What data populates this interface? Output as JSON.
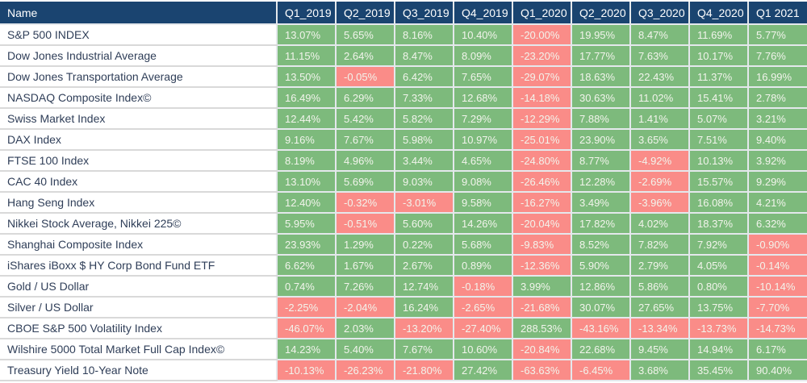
{
  "table": {
    "name_header": "Name",
    "quarter_headers": [
      "Q1_2019",
      "Q2_2019",
      "Q3_2019",
      "Q4_2019",
      "Q1_2020",
      "Q2_2020",
      "Q3_2020",
      "Q4_2020",
      "Q1 2021"
    ],
    "rows": [
      {
        "name": "S&P 500 INDEX",
        "values": [
          "13.07%",
          "5.65%",
          "8.16%",
          "10.40%",
          "-20.00%",
          "19.95%",
          "8.47%",
          "11.69%",
          "5.77%"
        ]
      },
      {
        "name": "Dow Jones Industrial Average",
        "values": [
          "11.15%",
          "2.64%",
          "8.47%",
          "8.09%",
          "-23.20%",
          "17.77%",
          "7.63%",
          "10.17%",
          "7.76%"
        ]
      },
      {
        "name": "Dow Jones Transportation Average",
        "values": [
          "13.50%",
          "-0.05%",
          "6.42%",
          "7.65%",
          "-29.07%",
          "18.63%",
          "22.43%",
          "11.37%",
          "16.99%"
        ]
      },
      {
        "name": "NASDAQ Composite Index©",
        "values": [
          "16.49%",
          "6.29%",
          "7.33%",
          "12.68%",
          "-14.18%",
          "30.63%",
          "11.02%",
          "15.41%",
          "2.78%"
        ]
      },
      {
        "name": "Swiss Market Index",
        "values": [
          "12.44%",
          "5.42%",
          "5.82%",
          "7.29%",
          "-12.29%",
          "7.88%",
          "1.41%",
          "5.07%",
          "3.21%"
        ]
      },
      {
        "name": "DAX Index",
        "values": [
          "9.16%",
          "7.67%",
          "5.98%",
          "10.97%",
          "-25.01%",
          "23.90%",
          "3.65%",
          "7.51%",
          "9.40%"
        ]
      },
      {
        "name": "FTSE 100 Index",
        "values": [
          "8.19%",
          "4.96%",
          "3.44%",
          "4.65%",
          "-24.80%",
          "8.77%",
          "-4.92%",
          "10.13%",
          "3.92%"
        ]
      },
      {
        "name": "CAC 40 Index",
        "values": [
          "13.10%",
          "5.69%",
          "9.03%",
          "9.08%",
          "-26.46%",
          "12.28%",
          "-2.69%",
          "15.57%",
          "9.29%"
        ]
      },
      {
        "name": "Hang Seng Index",
        "values": [
          "12.40%",
          "-0.32%",
          "-3.01%",
          "9.58%",
          "-16.27%",
          "3.49%",
          "-3.96%",
          "16.08%",
          "4.21%"
        ]
      },
      {
        "name": "Nikkei Stock Average, Nikkei 225©",
        "values": [
          "5.95%",
          "-0.51%",
          "5.60%",
          "14.26%",
          "-20.04%",
          "17.82%",
          "4.02%",
          "18.37%",
          "6.32%"
        ]
      },
      {
        "name": "Shanghai Composite Index",
        "values": [
          "23.93%",
          "1.29%",
          "0.22%",
          "5.68%",
          "-9.83%",
          "8.52%",
          "7.82%",
          "7.92%",
          "-0.90%"
        ]
      },
      {
        "name": "iShares iBoxx $ HY Corp Bond Fund ETF",
        "values": [
          "6.62%",
          "1.67%",
          "2.67%",
          "0.89%",
          "-12.36%",
          "5.90%",
          "2.79%",
          "4.05%",
          "-0.14%"
        ]
      },
      {
        "name": "Gold / US Dollar",
        "values": [
          "0.74%",
          "7.26%",
          "12.74%",
          "-0.18%",
          "3.99%",
          "12.86%",
          "5.86%",
          "0.80%",
          "-10.14%"
        ]
      },
      {
        "name": "Silver / US Dollar",
        "values": [
          "-2.25%",
          "-2.04%",
          "16.24%",
          "-2.65%",
          "-21.68%",
          "30.07%",
          "27.65%",
          "13.75%",
          "-7.70%"
        ]
      },
      {
        "name": "CBOE S&P 500 Volatility Index",
        "values": [
          "-46.07%",
          "2.03%",
          "-13.20%",
          "-27.40%",
          "288.53%",
          "-43.16%",
          "-13.34%",
          "-13.73%",
          "-14.73%"
        ]
      },
      {
        "name": "Wilshire 5000 Total Market Full Cap Index©",
        "values": [
          "14.23%",
          "5.40%",
          "7.67%",
          "10.60%",
          "-20.84%",
          "22.68%",
          "9.45%",
          "14.94%",
          "6.17%"
        ]
      },
      {
        "name": "Treasury Yield 10-Year Note",
        "values": [
          "-10.13%",
          "-26.23%",
          "-21.80%",
          "27.42%",
          "-63.63%",
          "-6.45%",
          "3.68%",
          "35.45%",
          "90.40%"
        ]
      }
    ]
  },
  "colors": {
    "header_bg": "#1A4470",
    "header_text": "#FFFFFF",
    "positive_bg": "#7DBA7C",
    "negative_bg": "#FA8C88",
    "cell_text": "#F2F4EC",
    "name_text": "#2F3E58",
    "grid_line": "#E4E8EC"
  },
  "chart_data": {
    "type": "table",
    "title": "Quarterly returns by index (%)",
    "columns": [
      "Name",
      "Q1_2019",
      "Q2_2019",
      "Q3_2019",
      "Q4_2019",
      "Q1_2020",
      "Q2_2020",
      "Q3_2020",
      "Q4_2020",
      "Q1 2021"
    ],
    "series": [
      {
        "name": "S&P 500 INDEX",
        "values": [
          13.07,
          5.65,
          8.16,
          10.4,
          -20.0,
          19.95,
          8.47,
          11.69,
          5.77
        ]
      },
      {
        "name": "Dow Jones Industrial Average",
        "values": [
          11.15,
          2.64,
          8.47,
          8.09,
          -23.2,
          17.77,
          7.63,
          10.17,
          7.76
        ]
      },
      {
        "name": "Dow Jones Transportation Average",
        "values": [
          13.5,
          -0.05,
          6.42,
          7.65,
          -29.07,
          18.63,
          22.43,
          11.37,
          16.99
        ]
      },
      {
        "name": "NASDAQ Composite Index©",
        "values": [
          16.49,
          6.29,
          7.33,
          12.68,
          -14.18,
          30.63,
          11.02,
          15.41,
          2.78
        ]
      },
      {
        "name": "Swiss Market Index",
        "values": [
          12.44,
          5.42,
          5.82,
          7.29,
          -12.29,
          7.88,
          1.41,
          5.07,
          3.21
        ]
      },
      {
        "name": "DAX Index",
        "values": [
          9.16,
          7.67,
          5.98,
          10.97,
          -25.01,
          23.9,
          3.65,
          7.51,
          9.4
        ]
      },
      {
        "name": "FTSE 100 Index",
        "values": [
          8.19,
          4.96,
          3.44,
          4.65,
          -24.8,
          8.77,
          -4.92,
          10.13,
          3.92
        ]
      },
      {
        "name": "CAC 40 Index",
        "values": [
          13.1,
          5.69,
          9.03,
          9.08,
          -26.46,
          12.28,
          -2.69,
          15.57,
          9.29
        ]
      },
      {
        "name": "Hang Seng Index",
        "values": [
          12.4,
          -0.32,
          -3.01,
          9.58,
          -16.27,
          3.49,
          -3.96,
          16.08,
          4.21
        ]
      },
      {
        "name": "Nikkei Stock Average, Nikkei 225©",
        "values": [
          5.95,
          -0.51,
          5.6,
          14.26,
          -20.04,
          17.82,
          4.02,
          18.37,
          6.32
        ]
      },
      {
        "name": "Shanghai Composite Index",
        "values": [
          23.93,
          1.29,
          0.22,
          5.68,
          -9.83,
          8.52,
          7.82,
          7.92,
          -0.9
        ]
      },
      {
        "name": "iShares iBoxx $ HY Corp Bond Fund ETF",
        "values": [
          6.62,
          1.67,
          2.67,
          0.89,
          -12.36,
          5.9,
          2.79,
          4.05,
          -0.14
        ]
      },
      {
        "name": "Gold / US Dollar",
        "values": [
          0.74,
          7.26,
          12.74,
          -0.18,
          3.99,
          12.86,
          5.86,
          0.8,
          -10.14
        ]
      },
      {
        "name": "Silver / US Dollar",
        "values": [
          -2.25,
          -2.04,
          16.24,
          -2.65,
          -21.68,
          30.07,
          27.65,
          13.75,
          -7.7
        ]
      },
      {
        "name": "CBOE S&P 500 Volatility Index",
        "values": [
          -46.07,
          2.03,
          -13.2,
          -27.4,
          288.53,
          -43.16,
          -13.34,
          -13.73,
          -14.73
        ]
      },
      {
        "name": "Wilshire 5000 Total Market Full Cap Index©",
        "values": [
          14.23,
          5.4,
          7.67,
          10.6,
          -20.84,
          22.68,
          9.45,
          14.94,
          6.17
        ]
      },
      {
        "name": "Treasury Yield 10-Year Note",
        "values": [
          -10.13,
          -26.23,
          -21.8,
          27.42,
          -63.63,
          -6.45,
          3.68,
          35.45,
          90.4
        ]
      }
    ],
    "value_format": "percent, 2 decimals",
    "color_rule": "positive values green background, negative values red background",
    "legend_position": "none",
    "grid": true
  }
}
